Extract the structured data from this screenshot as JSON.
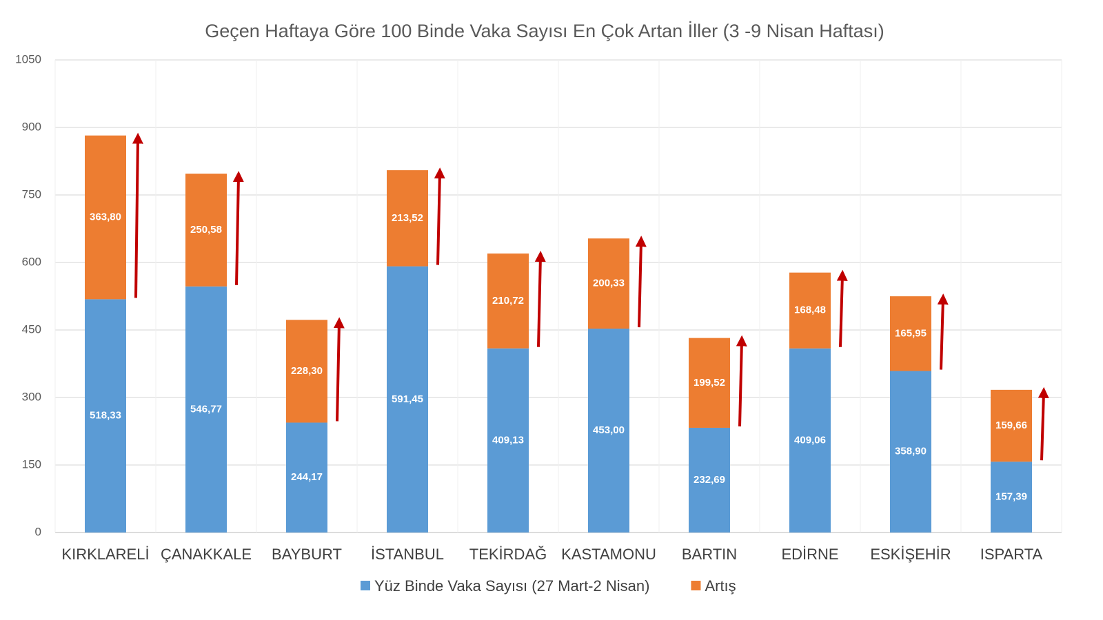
{
  "chart_data": {
    "type": "stacked-bar",
    "title": "Geçen Haftaya Göre 100 Binde Vaka Sayısı En Çok Artan İller (3   -9 Nisan Haftası)",
    "categories": [
      "KIRKLARELİ",
      "ÇANAKKALE",
      "BAYBURT",
      "İSTANBUL",
      "TEKİRDAĞ",
      "KASTAMONU",
      "BARTIN",
      "EDİRNE",
      "ESKİŞEHİR",
      "ISPARTA"
    ],
    "series": [
      {
        "name": "Yüz Binde Vaka Sayısı (27 Mart-2 Nisan)",
        "color": "#5b9bd5",
        "values": [
          518.33,
          546.77,
          244.17,
          591.45,
          409.13,
          453.0,
          232.69,
          409.06,
          358.9,
          157.39
        ],
        "value_labels": [
          "518,33",
          "546,77",
          "244,17",
          "591,45",
          "409,13",
          "453,00",
          "232,69",
          "409,06",
          "358,90",
          "157,39"
        ]
      },
      {
        "name": "Artış",
        "color": "#ed7d31",
        "values": [
          363.8,
          250.58,
          228.3,
          213.52,
          210.72,
          200.33,
          199.52,
          168.48,
          165.95,
          159.66
        ],
        "value_labels": [
          "363,80",
          "250,58",
          "228,30",
          "213,52",
          "210,72",
          "200,33",
          "199,52",
          "168,48",
          "165,95",
          "159,66"
        ]
      }
    ],
    "ylim": [
      0,
      1050
    ],
    "yticks": [
      0,
      150,
      300,
      450,
      600,
      750,
      900,
      1050
    ],
    "grid": true,
    "arrow_color": "#c00000"
  }
}
